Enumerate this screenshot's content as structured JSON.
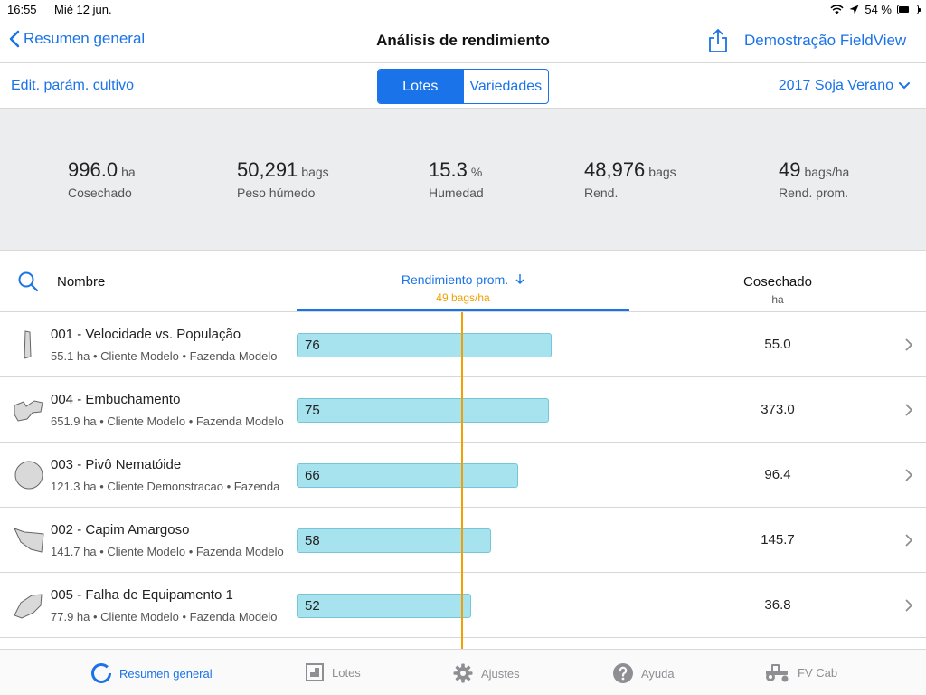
{
  "status": {
    "time": "16:55",
    "date": "Mié 12 jun.",
    "battery": "54 %",
    "battery_level": 0.54
  },
  "nav": {
    "back_label": "Resumen general",
    "title": "Análisis de rendimiento",
    "right_label": "Demostração FieldView"
  },
  "toolbar": {
    "edit_label": "Edit. parám. cultivo",
    "segments": [
      "Lotes",
      "Variedades"
    ],
    "active_segment": 0,
    "season_label": "2017 Soja Verano"
  },
  "summary": [
    {
      "value": "996.0",
      "unit": "ha",
      "label": "Cosechado"
    },
    {
      "value": "50,291",
      "unit": "bags",
      "label": "Peso húmedo"
    },
    {
      "value": "15.3",
      "unit": "%",
      "label": "Humedad"
    },
    {
      "value": "48,976",
      "unit": "bags",
      "label": "Rend."
    },
    {
      "value": "49",
      "unit": "bags/ha",
      "label": "Rend. prom."
    }
  ],
  "columns": {
    "name": "Nombre",
    "yield": "Rendimiento prom.",
    "yield_avg": "49 bags/ha",
    "harvested": "Cosechado",
    "harvested_unit": "ha"
  },
  "average_yield": 49,
  "fields": [
    {
      "title": "001 - Velocidade vs. População",
      "meta": "55.1 ha • Cliente Modelo • Fazenda Modelo",
      "yield": 76,
      "harvested": "55.0",
      "shape": "thin"
    },
    {
      "title": "004 - Embuchamento",
      "meta": "651.9 ha • Cliente Modelo • Fazenda Modelo",
      "yield": 75,
      "harvested": "373.0",
      "shape": "wave"
    },
    {
      "title": "003 - Pivô Nematóide",
      "meta": "121.3 ha • Cliente Demonstracao • Fazenda",
      "yield": 66,
      "harvested": "96.4",
      "shape": "circle"
    },
    {
      "title": "002 - Capim Amargoso",
      "meta": "141.7 ha • Cliente Modelo • Fazenda Modelo",
      "yield": 58,
      "harvested": "145.7",
      "shape": "flag"
    },
    {
      "title": "005 - Falha de Equipamento 1",
      "meta": "77.9 ha • Cliente Modelo • Fazenda Modelo",
      "yield": 52,
      "harvested": "36.8",
      "shape": "leaf"
    }
  ],
  "tabs": [
    {
      "label": "Resumen general",
      "icon": "overview-icon",
      "active": true
    },
    {
      "label": "Lotes",
      "icon": "fields-icon",
      "active": false
    },
    {
      "label": "Ajustes",
      "icon": "gear-icon",
      "active": false
    },
    {
      "label": "Ayuda",
      "icon": "help-icon",
      "active": false
    },
    {
      "label": "FV Cab",
      "icon": "tractor-icon",
      "active": false
    }
  ]
}
